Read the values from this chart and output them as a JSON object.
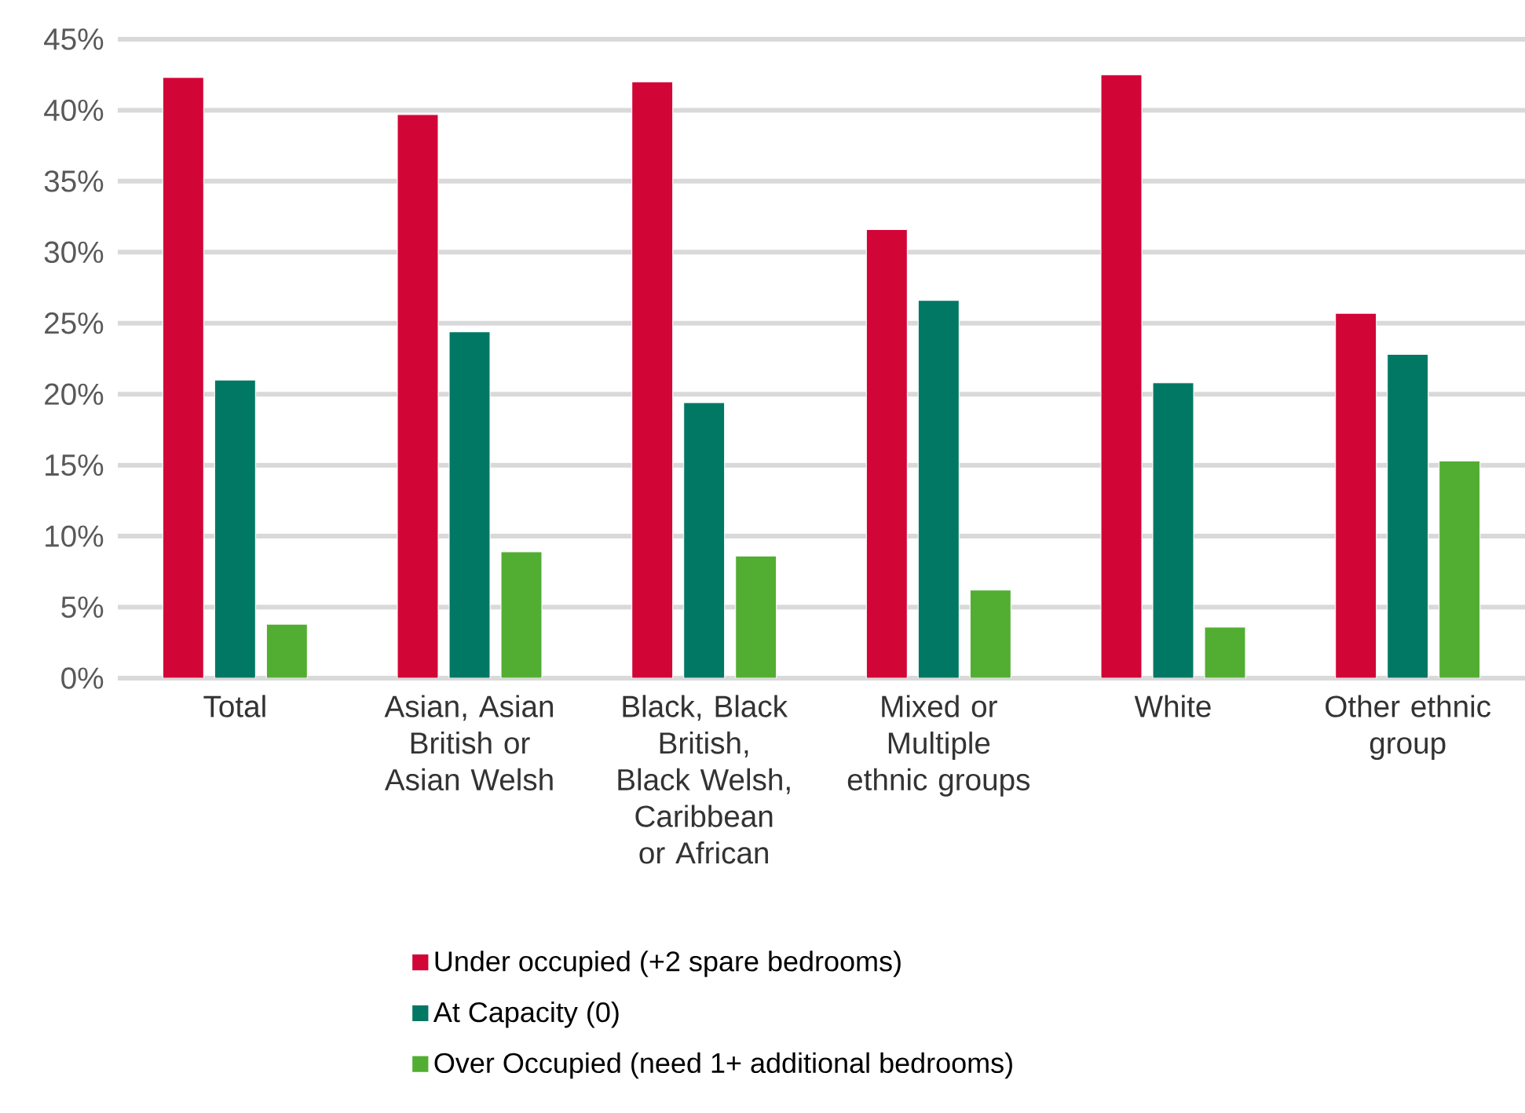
{
  "chart_data": {
    "type": "bar",
    "categories": [
      "Total",
      "Asian, Asian British or Asian Welsh",
      "Black, Black British, Black Welsh, Caribbean or African",
      "Mixed or Multiple ethnic groups",
      "White",
      "Other ethnic group"
    ],
    "series": [
      {
        "name": "Under occupied (+2 spare bedrooms)",
        "color": "#d20537",
        "values": [
          42.3,
          39.7,
          42.0,
          31.6,
          42.5,
          25.7
        ]
      },
      {
        "name": "At Capacity (0)",
        "color": "#007864",
        "values": [
          21.0,
          24.4,
          19.4,
          26.6,
          20.8,
          22.8
        ]
      },
      {
        "name": "Over Occupied (need 1+ additional bedrooms)",
        "color": "#52ae32",
        "values": [
          3.8,
          8.9,
          8.6,
          6.2,
          3.6,
          15.3
        ]
      }
    ],
    "ylim": [
      0,
      45
    ],
    "yticks": [
      {
        "value": 0,
        "label": "0%"
      },
      {
        "value": 5,
        "label": "5%"
      },
      {
        "value": 10,
        "label": "10%"
      },
      {
        "value": 15,
        "label": "15%"
      },
      {
        "value": 20,
        "label": "20%"
      },
      {
        "value": 25,
        "label": "25%"
      },
      {
        "value": 30,
        "label": "30%"
      },
      {
        "value": 35,
        "label": "35%"
      },
      {
        "value": 40,
        "label": "40%"
      },
      {
        "value": 45,
        "label": "45%"
      }
    ],
    "grid": "y",
    "legend": "bottom"
  }
}
